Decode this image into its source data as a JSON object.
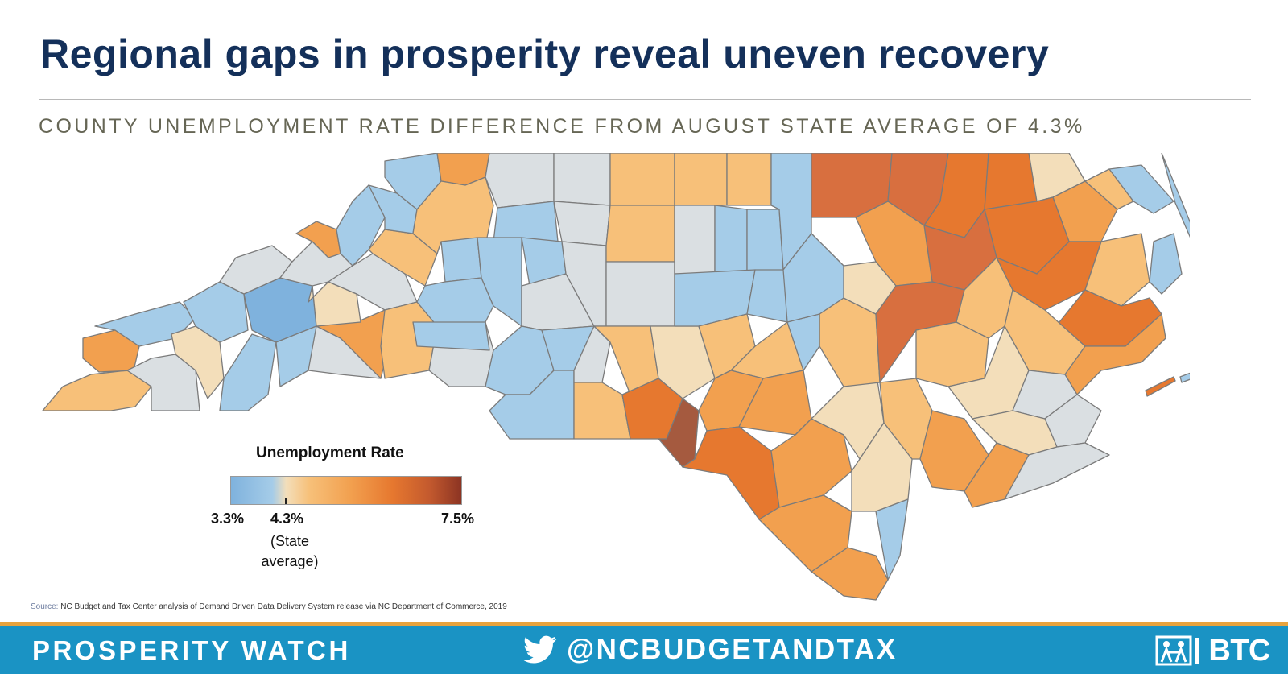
{
  "header": {
    "title": "Regional gaps in prosperity reveal uneven recovery",
    "subtitle": "COUNTY UNEMPLOYMENT RATE DIFFERENCE FROM AUGUST STATE AVERAGE OF 4.3%"
  },
  "legend": {
    "title": "Unemployment Rate",
    "min_label": "3.3%",
    "mid_label": "4.3%",
    "mid_note_line1": "(State",
    "mid_note_line2": "average)",
    "max_label": "7.5%",
    "min_value": 3.3,
    "mid_value": 4.3,
    "max_value": 7.5,
    "colors": [
      "#7fb2dd",
      "#a5cce8",
      "#f3deba",
      "#f7c079",
      "#f2a04f",
      "#e6782f",
      "#c45a2e",
      "#8c3423"
    ]
  },
  "source": {
    "label": "Source:",
    "text": "NC Budget and Tax Center analysis of Demand Driven Data Delivery System release via NC Department of Commerce, 2019"
  },
  "footer": {
    "left": "PROSPERITY WATCH",
    "handle": "@NCBUDGETANDTAX",
    "brand": "BTC",
    "bar_color": "#1a93c4",
    "accent_color": "#e8a33d"
  }
}
